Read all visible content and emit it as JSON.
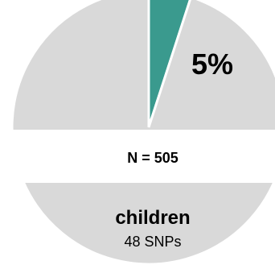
{
  "chart_data": {
    "type": "pie",
    "slices": [
      {
        "label": "5%",
        "value": 5,
        "color": "#3a9a8e"
      },
      {
        "label": "",
        "value": 95,
        "color": "#d9d9d9"
      }
    ],
    "center_text": "N = 505",
    "group_label": "children",
    "group_sublabel": "48 SNPs"
  }
}
